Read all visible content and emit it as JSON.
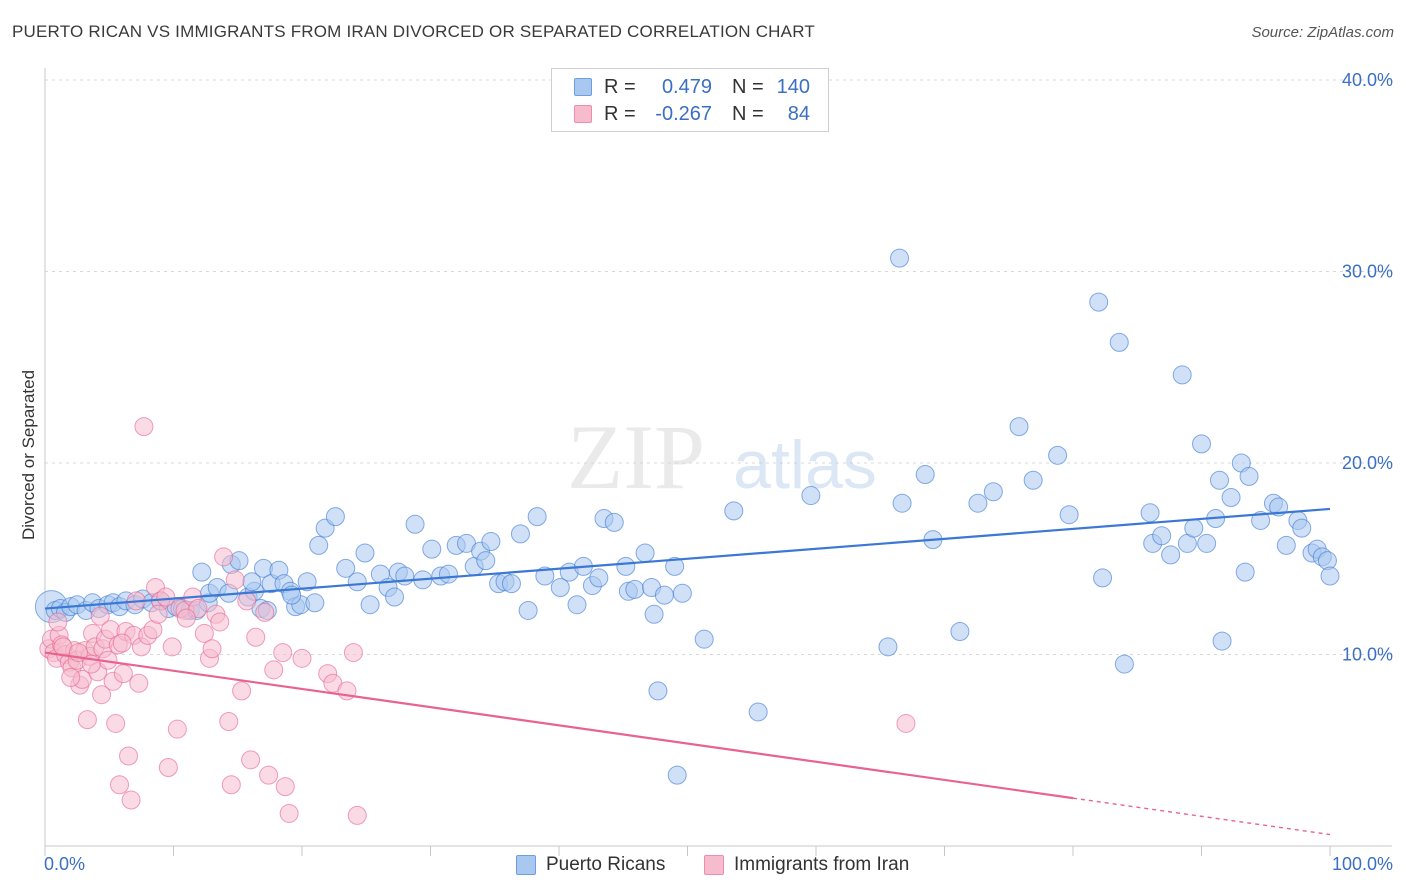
{
  "title": "PUERTO RICAN VS IMMIGRANTS FROM IRAN DIVORCED OR SEPARATED CORRELATION CHART",
  "source": "Source: ZipAtlas.com",
  "watermark": {
    "zip": "ZIP",
    "atlas": "atlas"
  },
  "legend_top": {
    "r_label": "R =",
    "n_label": "N =",
    "rows": [
      {
        "r": "0.479",
        "n": "140",
        "fill": "#a9c8f0",
        "stroke": "#6f9ee0"
      },
      {
        "r": "-0.267",
        "n": "84",
        "fill": "#f6bccd",
        "stroke": "#ea8fab"
      }
    ]
  },
  "legend_bottom": [
    {
      "label": "Puerto Ricans",
      "fill": "#a9c8f0",
      "stroke": "#6f9ee0"
    },
    {
      "label": "Immigrants from Iran",
      "fill": "#f6bccd",
      "stroke": "#ea8fab"
    }
  ],
  "chart_data": {
    "type": "scatter",
    "title": "PUERTO RICAN VS IMMIGRANTS FROM IRAN DIVORCED OR SEPARATED CORRELATION CHART",
    "xlabel": "",
    "ylabel": "Divorced or Separated",
    "xlim": [
      0,
      100
    ],
    "ylim": [
      0,
      40
    ],
    "x_tick_labels": [
      "0.0%",
      "100.0%"
    ],
    "y_ticks": [
      10,
      20,
      30,
      40
    ],
    "y_tick_labels": [
      "10.0%",
      "20.0%",
      "30.0%",
      "40.0%"
    ],
    "grid": true,
    "legend_position": "top-center",
    "colors": {
      "blue": "#3b78d4",
      "pink": "#e8638f",
      "grid": "#d8d8d8",
      "axis": "#c8c8c8"
    },
    "series": [
      {
        "name": "Puerto Ricans",
        "color": "#3b78d4",
        "fill": "#a9c8f0",
        "trend": {
          "x": [
            0,
            100
          ],
          "y": [
            12.4,
            17.6
          ]
        },
        "points": [
          [
            0.5,
            12.5
          ],
          [
            0.8,
            12.3
          ],
          [
            1.2,
            12.4
          ],
          [
            1.6,
            12.2
          ],
          [
            2.0,
            12.5
          ],
          [
            2.5,
            12.6
          ],
          [
            3.2,
            12.3
          ],
          [
            3.7,
            12.7
          ],
          [
            4.2,
            12.4
          ],
          [
            4.9,
            12.6
          ],
          [
            5.3,
            12.7
          ],
          [
            5.8,
            12.5
          ],
          [
            6.3,
            12.8
          ],
          [
            7.0,
            12.6
          ],
          [
            7.6,
            12.9
          ],
          [
            8.3,
            12.7
          ],
          [
            9.0,
            12.8
          ],
          [
            9.6,
            12.4
          ],
          [
            10.2,
            12.5
          ],
          [
            10.7,
            12.4
          ],
          [
            11.3,
            12.3
          ],
          [
            11.8,
            12.3
          ],
          [
            12.7,
            12.7
          ],
          [
            12.8,
            13.2
          ],
          [
            12.2,
            14.3
          ],
          [
            13.4,
            13.5
          ],
          [
            14.3,
            13.2
          ],
          [
            14.5,
            14.7
          ],
          [
            15.1,
            14.9
          ],
          [
            15.8,
            13.0
          ],
          [
            16.3,
            13.3
          ],
          [
            16.1,
            13.8
          ],
          [
            16.8,
            12.4
          ],
          [
            17.3,
            12.3
          ],
          [
            17.0,
            14.5
          ],
          [
            17.6,
            13.7
          ],
          [
            18.2,
            14.4
          ],
          [
            18.6,
            13.7
          ],
          [
            19.1,
            13.3
          ],
          [
            19.5,
            12.5
          ],
          [
            19.9,
            12.6
          ],
          [
            19.2,
            13.1
          ],
          [
            20.4,
            13.8
          ],
          [
            21.3,
            15.7
          ],
          [
            21.8,
            16.6
          ],
          [
            22.6,
            17.2
          ],
          [
            23.4,
            14.5
          ],
          [
            24.3,
            13.8
          ],
          [
            24.9,
            15.3
          ],
          [
            25.3,
            12.6
          ],
          [
            26.1,
            14.2
          ],
          [
            26.7,
            13.5
          ],
          [
            27.2,
            13.0
          ],
          [
            27.5,
            14.3
          ],
          [
            28.0,
            14.1
          ],
          [
            28.8,
            16.8
          ],
          [
            29.4,
            13.9
          ],
          [
            30.1,
            15.5
          ],
          [
            30.8,
            14.1
          ],
          [
            31.4,
            14.2
          ],
          [
            32.0,
            15.7
          ],
          [
            32.8,
            15.8
          ],
          [
            33.4,
            14.6
          ],
          [
            33.9,
            15.4
          ],
          [
            34.3,
            14.9
          ],
          [
            34.7,
            15.9
          ],
          [
            35.3,
            13.7
          ],
          [
            35.8,
            13.8
          ],
          [
            36.3,
            13.7
          ],
          [
            37.0,
            16.3
          ],
          [
            37.6,
            12.3
          ],
          [
            38.3,
            17.2
          ],
          [
            40.1,
            13.5
          ],
          [
            40.8,
            14.3
          ],
          [
            41.4,
            12.6
          ],
          [
            41.9,
            14.6
          ],
          [
            42.6,
            13.6
          ],
          [
            43.1,
            14.0
          ],
          [
            43.5,
            17.1
          ],
          [
            44.3,
            16.9
          ],
          [
            45.2,
            14.6
          ],
          [
            45.4,
            13.3
          ],
          [
            45.9,
            13.4
          ],
          [
            46.7,
            15.3
          ],
          [
            47.2,
            13.5
          ],
          [
            47.4,
            12.1
          ],
          [
            47.7,
            8.1
          ],
          [
            48.2,
            13.1
          ],
          [
            49.0,
            14.6
          ],
          [
            49.6,
            13.2
          ],
          [
            49.2,
            3.7
          ],
          [
            51.3,
            10.8
          ],
          [
            53.6,
            17.5
          ],
          [
            55.5,
            7.0
          ],
          [
            59.6,
            18.3
          ],
          [
            65.6,
            10.4
          ],
          [
            66.5,
            30.7
          ],
          [
            66.7,
            17.9
          ],
          [
            68.5,
            19.4
          ],
          [
            69.1,
            16.0
          ],
          [
            71.2,
            11.2
          ],
          [
            72.6,
            17.9
          ],
          [
            73.8,
            18.5
          ],
          [
            75.8,
            21.9
          ],
          [
            76.9,
            19.1
          ],
          [
            78.8,
            20.4
          ],
          [
            79.7,
            17.3
          ],
          [
            82.0,
            28.4
          ],
          [
            82.3,
            14.0
          ],
          [
            83.6,
            26.3
          ],
          [
            84.0,
            9.5
          ],
          [
            86.0,
            17.4
          ],
          [
            86.2,
            15.8
          ],
          [
            86.9,
            16.2
          ],
          [
            87.6,
            15.2
          ],
          [
            88.5,
            24.6
          ],
          [
            88.9,
            15.8
          ],
          [
            89.4,
            16.6
          ],
          [
            90.0,
            21.0
          ],
          [
            90.4,
            15.8
          ],
          [
            91.1,
            17.1
          ],
          [
            91.4,
            19.1
          ],
          [
            91.6,
            10.7
          ],
          [
            92.3,
            18.2
          ],
          [
            93.1,
            20.0
          ],
          [
            93.4,
            14.3
          ],
          [
            93.7,
            19.3
          ],
          [
            94.6,
            17.0
          ],
          [
            95.6,
            17.9
          ],
          [
            96.0,
            17.7
          ],
          [
            96.6,
            15.7
          ],
          [
            97.5,
            17.0
          ],
          [
            97.8,
            16.6
          ],
          [
            98.6,
            15.3
          ],
          [
            99.0,
            15.5
          ],
          [
            99.4,
            15.1
          ],
          [
            99.8,
            14.9
          ],
          [
            100.0,
            14.1
          ],
          [
            21.0,
            12.7
          ],
          [
            38.9,
            14.1
          ]
        ]
      },
      {
        "name": "Immigrants from Iran",
        "color": "#e8638f",
        "fill": "#f6bccd",
        "trend": {
          "x": [
            0,
            80
          ],
          "y": [
            10.1,
            2.5
          ],
          "dashed_to": {
            "x": 100,
            "y": 0.6
          }
        },
        "points": [
          [
            0.3,
            10.3
          ],
          [
            0.5,
            10.8
          ],
          [
            0.7,
            10.1
          ],
          [
            0.9,
            9.8
          ],
          [
            1.1,
            11.0
          ],
          [
            1.3,
            10.5
          ],
          [
            1.6,
            10.0
          ],
          [
            1.9,
            9.6
          ],
          [
            2.1,
            9.3
          ],
          [
            2.3,
            10.2
          ],
          [
            2.5,
            9.7
          ],
          [
            2.7,
            8.4
          ],
          [
            2.9,
            8.7
          ],
          [
            3.1,
            10.2
          ],
          [
            3.3,
            6.6
          ],
          [
            3.5,
            9.9
          ],
          [
            3.7,
            11.1
          ],
          [
            3.9,
            10.4
          ],
          [
            4.1,
            9.1
          ],
          [
            4.3,
            12.0
          ],
          [
            4.5,
            10.3
          ],
          [
            4.7,
            10.8
          ],
          [
            4.9,
            9.7
          ],
          [
            5.1,
            11.3
          ],
          [
            5.3,
            8.6
          ],
          [
            5.5,
            6.4
          ],
          [
            5.7,
            10.5
          ],
          [
            5.8,
            3.2
          ],
          [
            6.1,
            9.0
          ],
          [
            6.3,
            11.2
          ],
          [
            6.5,
            4.7
          ],
          [
            6.7,
            2.4
          ],
          [
            6.9,
            11.0
          ],
          [
            7.1,
            12.8
          ],
          [
            7.3,
            8.5
          ],
          [
            7.5,
            10.4
          ],
          [
            7.7,
            21.9
          ],
          [
            8.0,
            11.0
          ],
          [
            8.4,
            11.3
          ],
          [
            8.6,
            13.5
          ],
          [
            9.0,
            12.8
          ],
          [
            9.4,
            13.0
          ],
          [
            9.6,
            4.1
          ],
          [
            9.9,
            10.4
          ],
          [
            10.3,
            6.1
          ],
          [
            10.5,
            12.4
          ],
          [
            10.9,
            12.3
          ],
          [
            11.5,
            13.0
          ],
          [
            11.9,
            12.4
          ],
          [
            12.4,
            11.1
          ],
          [
            12.8,
            9.8
          ],
          [
            13.0,
            10.3
          ],
          [
            13.3,
            12.1
          ],
          [
            13.6,
            11.7
          ],
          [
            13.9,
            15.1
          ],
          [
            14.3,
            6.5
          ],
          [
            14.5,
            3.2
          ],
          [
            14.8,
            13.9
          ],
          [
            15.3,
            8.1
          ],
          [
            15.7,
            12.8
          ],
          [
            16.0,
            4.5
          ],
          [
            16.4,
            10.9
          ],
          [
            17.1,
            12.2
          ],
          [
            17.4,
            3.7
          ],
          [
            17.8,
            9.2
          ],
          [
            18.5,
            10.1
          ],
          [
            18.7,
            3.1
          ],
          [
            19.0,
            1.7
          ],
          [
            20.0,
            9.8
          ],
          [
            22.0,
            9.0
          ],
          [
            22.4,
            8.5
          ],
          [
            23.5,
            8.1
          ],
          [
            24.0,
            10.1
          ],
          [
            24.3,
            1.6
          ],
          [
            67.0,
            6.4
          ],
          [
            1.0,
            11.7
          ],
          [
            2.0,
            8.8
          ],
          [
            3.6,
            9.5
          ],
          [
            4.4,
            7.9
          ],
          [
            6.0,
            10.6
          ],
          [
            8.8,
            12.1
          ],
          [
            11.0,
            11.9
          ],
          [
            1.4,
            10.4
          ],
          [
            2.6,
            10.1
          ]
        ]
      }
    ]
  }
}
